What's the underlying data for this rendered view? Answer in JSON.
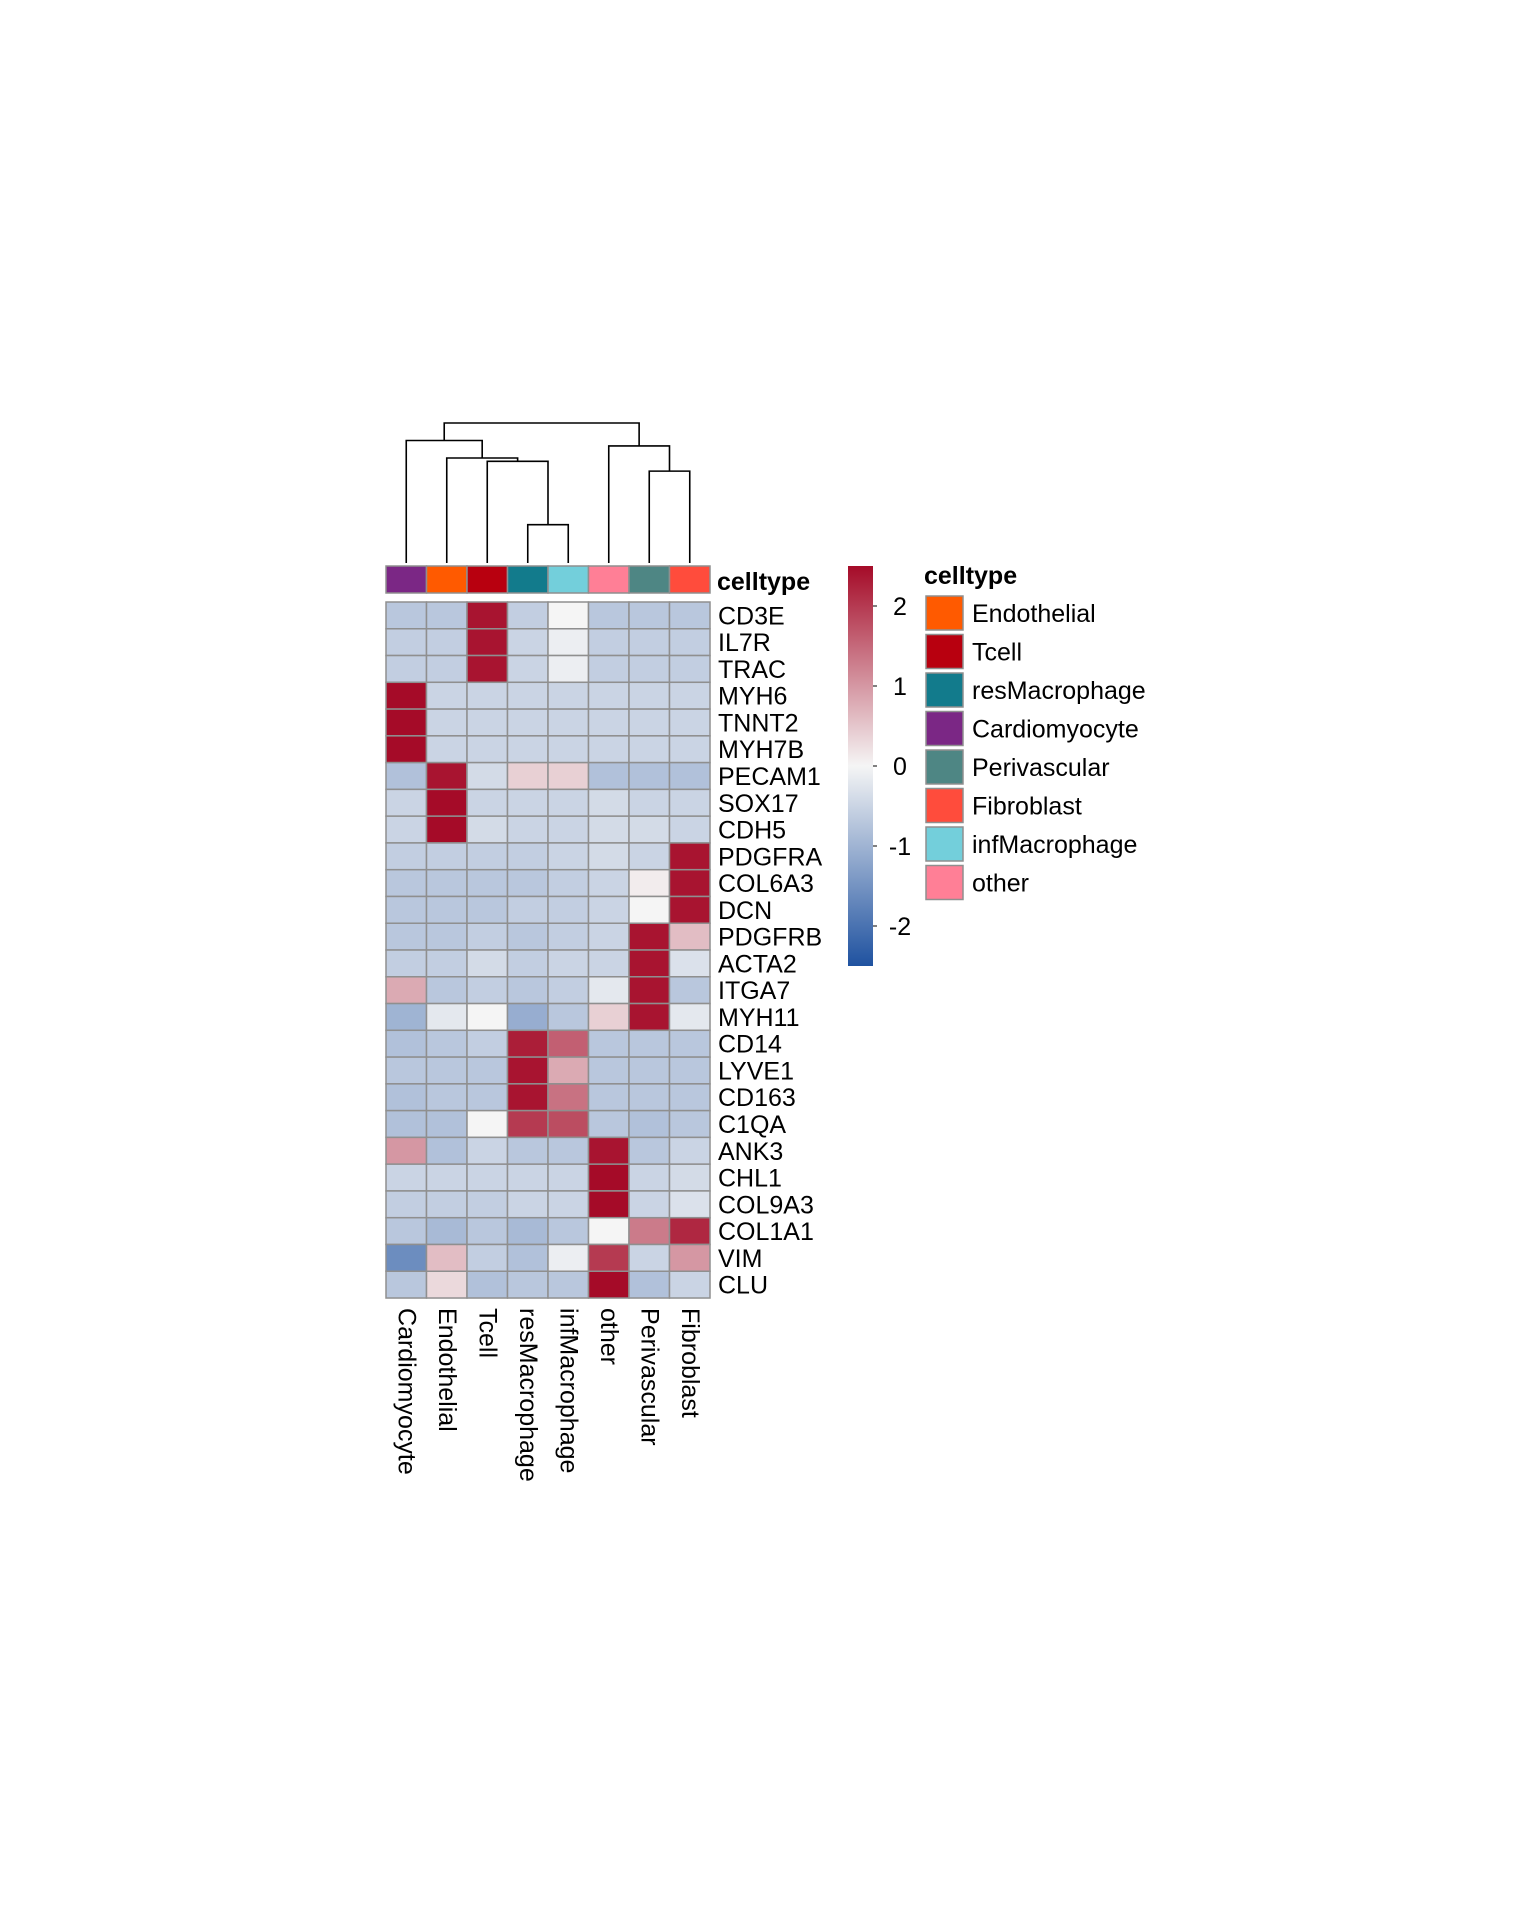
{
  "chart_data": {
    "type": "heatmap",
    "columns": [
      "Cardiomyocyte",
      "Endothelial",
      "Tcell",
      "resMacrophage",
      "infMacrophage",
      "other",
      "Perivascular",
      "Fibroblast"
    ],
    "rows": [
      "CD3E",
      "IL7R",
      "TRAC",
      "MYH6",
      "TNNT2",
      "MYH7B",
      "PECAM1",
      "SOX17",
      "CDH5",
      "PDGFRA",
      "COL6A3",
      "DCN",
      "PDGFRB",
      "ACTA2",
      "ITGA7",
      "MYH11",
      "CD14",
      "LYVE1",
      "CD163",
      "C1QA",
      "ANK3",
      "CHL1",
      "COL9A3",
      "COL1A1",
      "VIM",
      "CLU"
    ],
    "values": [
      [
        -0.7,
        -0.7,
        2.4,
        -0.6,
        0.0,
        -0.7,
        -0.7,
        -0.7
      ],
      [
        -0.6,
        -0.6,
        2.4,
        -0.5,
        -0.1,
        -0.6,
        -0.6,
        -0.6
      ],
      [
        -0.6,
        -0.6,
        2.4,
        -0.5,
        -0.1,
        -0.6,
        -0.6,
        -0.6
      ],
      [
        2.5,
        -0.5,
        -0.5,
        -0.5,
        -0.5,
        -0.5,
        -0.5,
        -0.5
      ],
      [
        2.5,
        -0.5,
        -0.5,
        -0.5,
        -0.5,
        -0.5,
        -0.5,
        -0.5
      ],
      [
        2.5,
        -0.5,
        -0.5,
        -0.5,
        -0.5,
        -0.5,
        -0.5,
        -0.5
      ],
      [
        -0.8,
        2.4,
        -0.4,
        0.4,
        0.4,
        -0.8,
        -0.8,
        -0.8
      ],
      [
        -0.5,
        2.5,
        -0.5,
        -0.5,
        -0.5,
        -0.4,
        -0.5,
        -0.5
      ],
      [
        -0.5,
        2.5,
        -0.4,
        -0.5,
        -0.5,
        -0.4,
        -0.4,
        -0.5
      ],
      [
        -0.6,
        -0.6,
        -0.6,
        -0.6,
        -0.5,
        -0.4,
        -0.5,
        2.4
      ],
      [
        -0.7,
        -0.7,
        -0.7,
        -0.7,
        -0.6,
        -0.5,
        0.1,
        2.4
      ],
      [
        -0.7,
        -0.7,
        -0.7,
        -0.6,
        -0.6,
        -0.5,
        0.0,
        2.4
      ],
      [
        -0.7,
        -0.7,
        -0.6,
        -0.7,
        -0.6,
        -0.5,
        2.4,
        0.6
      ],
      [
        -0.6,
        -0.6,
        -0.4,
        -0.6,
        -0.5,
        -0.5,
        2.4,
        -0.3
      ],
      [
        0.8,
        -0.7,
        -0.6,
        -0.7,
        -0.6,
        -0.2,
        2.4,
        -0.7
      ],
      [
        -1.0,
        -0.2,
        0.0,
        -1.1,
        -0.7,
        0.4,
        2.4,
        -0.2
      ],
      [
        -0.8,
        -0.7,
        -0.6,
        2.3,
        1.6,
        -0.7,
        -0.7,
        -0.7
      ],
      [
        -0.7,
        -0.7,
        -0.7,
        2.4,
        0.8,
        -0.7,
        -0.7,
        -0.7
      ],
      [
        -0.8,
        -0.7,
        -0.7,
        2.4,
        1.4,
        -0.7,
        -0.7,
        -0.7
      ],
      [
        -0.8,
        -0.8,
        0.0,
        2.0,
        1.8,
        -0.7,
        -0.8,
        -0.7
      ],
      [
        1.0,
        -0.8,
        -0.5,
        -0.7,
        -0.7,
        2.4,
        -0.7,
        -0.5
      ],
      [
        -0.5,
        -0.5,
        -0.5,
        -0.5,
        -0.5,
        2.5,
        -0.5,
        -0.4
      ],
      [
        -0.6,
        -0.6,
        -0.6,
        -0.5,
        -0.5,
        2.5,
        -0.5,
        -0.3
      ],
      [
        -0.7,
        -0.9,
        -0.7,
        -0.9,
        -0.7,
        0.0,
        1.3,
        2.2
      ],
      [
        -1.6,
        0.6,
        -0.6,
        -0.8,
        -0.1,
        2.0,
        -0.5,
        1.0
      ],
      [
        -0.7,
        0.3,
        -0.8,
        -0.7,
        -0.7,
        2.5,
        -0.8,
        -0.5
      ]
    ],
    "color_scale": {
      "min": -2.5,
      "max": 2.5,
      "low_color": "#1f52a0",
      "mid_color": "#f5f5f5",
      "high_color": "#a50b28",
      "ticks": [
        2,
        1,
        0,
        -1,
        -2
      ]
    },
    "annotation": {
      "title": "celltype",
      "column_values": [
        "Cardiomyocyte",
        "Endothelial",
        "Tcell",
        "resMacrophage",
        "infMacrophage",
        "other",
        "Perivascular",
        "Fibroblast"
      ],
      "legend": [
        {
          "label": "Endothelial",
          "color": "#ff5a00"
        },
        {
          "label": "Tcell",
          "color": "#b8000f"
        },
        {
          "label": "resMacrophage",
          "color": "#127b8c"
        },
        {
          "label": "Cardiomyocyte",
          "color": "#7b2785"
        },
        {
          "label": "Perivascular",
          "color": "#4e8684"
        },
        {
          "label": "Fibroblast",
          "color": "#ff4c3c"
        },
        {
          "label": "infMacrophage",
          "color": "#73cfdb"
        },
        {
          "label": "other",
          "color": "#ff7f96"
        }
      ]
    },
    "dendrogram": {
      "leaves": [
        "Cardiomyocyte",
        "Endothelial",
        "Tcell",
        "resMacrophage",
        "infMacrophage",
        "other",
        "Perivascular",
        "Fibroblast"
      ],
      "merges": [
        {
          "left": "resMacrophage",
          "right": "infMacrophage",
          "height": 0.35
        },
        {
          "left": "Perivascular",
          "right": "Fibroblast",
          "height": 0.84
        },
        {
          "left": "Tcell",
          "right": "C1",
          "height": 0.93
        },
        {
          "left": "other",
          "right": "C2",
          "height": 1.07
        },
        {
          "left": "Endothelial",
          "right": "C3",
          "height": 0.96
        },
        {
          "left": "Cardiomyocyte",
          "right": "C5",
          "height": 1.12
        },
        {
          "left": "C6",
          "right": "C4",
          "height": 1.28
        }
      ],
      "max_height": 1.28
    }
  }
}
